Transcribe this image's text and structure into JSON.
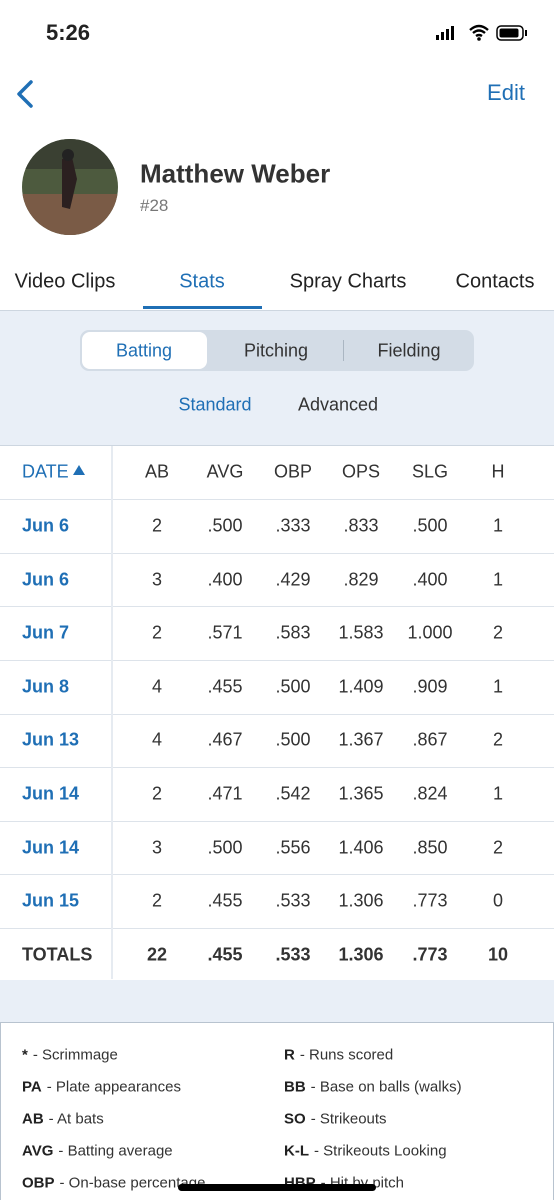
{
  "status": {
    "time": "5:26"
  },
  "nav": {
    "action": "Edit"
  },
  "profile": {
    "name": "Matthew Weber",
    "number": "#28"
  },
  "tabs": [
    "Video Clips",
    "Stats",
    "Spray Charts",
    "Contacts"
  ],
  "segments": [
    "Batting",
    "Pitching",
    "Fielding"
  ],
  "subtabs": [
    "Standard",
    "Advanced"
  ],
  "table": {
    "header": [
      "DATE",
      "AB",
      "AVG",
      "OBP",
      "OPS",
      "SLG",
      "H"
    ],
    "rows": [
      [
        "Jun 6",
        "2",
        ".500",
        ".333",
        ".833",
        ".500",
        "1"
      ],
      [
        "Jun 6",
        "3",
        ".400",
        ".429",
        ".829",
        ".400",
        "1"
      ],
      [
        "Jun 7",
        "2",
        ".571",
        ".583",
        "1.583",
        "1.000",
        "2"
      ],
      [
        "Jun 8",
        "4",
        ".455",
        ".500",
        "1.409",
        ".909",
        "1"
      ],
      [
        "Jun 13",
        "4",
        ".467",
        ".500",
        "1.367",
        ".867",
        "2"
      ],
      [
        "Jun 14",
        "2",
        ".471",
        ".542",
        "1.365",
        ".824",
        "1"
      ],
      [
        "Jun 14",
        "3",
        ".500",
        ".556",
        "1.406",
        ".850",
        "2"
      ],
      [
        "Jun 15",
        "2",
        ".455",
        ".533",
        "1.306",
        ".773",
        "0"
      ]
    ],
    "totals": [
      "TOTALS",
      "22",
      ".455",
      ".533",
      "1.306",
      ".773",
      "10"
    ]
  },
  "legend": [
    {
      "key": "*",
      "desc": "- Scrimmage"
    },
    {
      "key": "R",
      "desc": "- Runs scored"
    },
    {
      "key": "PA",
      "desc": "- Plate appearances"
    },
    {
      "key": "BB",
      "desc": "- Base on balls (walks)"
    },
    {
      "key": "AB",
      "desc": "- At bats"
    },
    {
      "key": "SO",
      "desc": "- Strikeouts"
    },
    {
      "key": "AVG",
      "desc": "- Batting average"
    },
    {
      "key": "K-L",
      "desc": "- Strikeouts Looking"
    },
    {
      "key": "OBP",
      "desc": "- On-base percentage"
    },
    {
      "key": "HBP",
      "desc": "- Hit by pitch"
    }
  ]
}
